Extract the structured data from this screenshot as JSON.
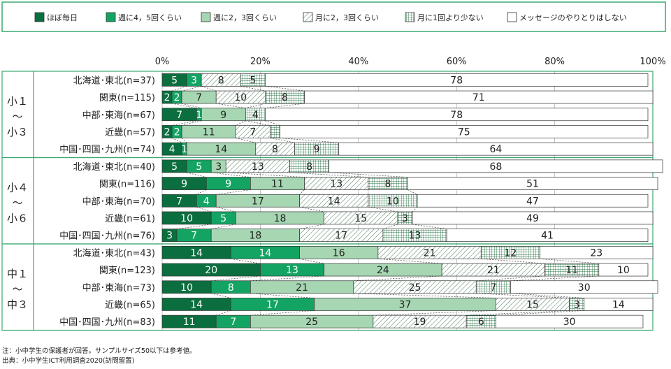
{
  "chart_data": {
    "type": "bar",
    "orientation": "horizontal",
    "stacked": true,
    "percent": true,
    "xlim": [
      0,
      100
    ],
    "x_ticks": [
      "0%",
      "20%",
      "40%",
      "60%",
      "80%",
      "100%"
    ],
    "legend": {
      "placement": "top",
      "items": [
        "ほぼ毎日",
        "週に4，5回くらい",
        "週に2，3回くらい",
        "月に2，3回くらい",
        "月に1回より少ない",
        "メッセージのやりとりはしない"
      ]
    },
    "groups": [
      {
        "label_lines": [
          "小１",
          "～",
          "小３"
        ],
        "rows": [
          {
            "label": "北海道･東北(n=37)",
            "values": [
              5,
              3,
              0,
              8,
              5,
              78
            ],
            "labels": [
              "5",
              "3",
              "",
              "8",
              "5",
              "78"
            ]
          },
          {
            "label": "関東(n=115)",
            "values": [
              2,
              2,
              7,
              10,
              8,
              71
            ],
            "labels": [
              "2",
              "2",
              "7",
              "10",
              "8",
              "71"
            ]
          },
          {
            "label": "中部･東海(n=67)",
            "values": [
              7,
              1,
              9,
              0,
              4,
              78
            ],
            "labels": [
              "7",
              "1",
              "9",
              "",
              "4",
              "78"
            ]
          },
          {
            "label": "近畿(n=57)",
            "values": [
              2,
              2,
              11,
              7,
              2,
              75
            ],
            "labels": [
              "2",
              "2",
              "11",
              "7",
              "",
              "75"
            ]
          },
          {
            "label": "中国･四国･九州(n=74)",
            "values": [
              4,
              1,
              14,
              8,
              9,
              64
            ],
            "labels": [
              "4",
              "1",
              "14",
              "8",
              "9",
              "64"
            ]
          }
        ]
      },
      {
        "label_lines": [
          "小４",
          "～",
          "小６"
        ],
        "rows": [
          {
            "label": "北海道･東北(n=40)",
            "values": [
              5,
              5,
              3,
              13,
              8,
              68
            ],
            "labels": [
              "5",
              "5",
              "3",
              "13",
              "8",
              "68"
            ]
          },
          {
            "label": "関東(n=116)",
            "values": [
              9,
              9,
              11,
              13,
              8,
              51
            ],
            "labels": [
              "9",
              "9",
              "11",
              "13",
              "8",
              "51"
            ]
          },
          {
            "label": "中部･東海(n=70)",
            "values": [
              7,
              4,
              17,
              14,
              10,
              47
            ],
            "labels": [
              "7",
              "4",
              "17",
              "14",
              "10",
              "47"
            ]
          },
          {
            "label": "近畿(n=61)",
            "values": [
              10,
              5,
              18,
              15,
              3,
              49
            ],
            "labels": [
              "10",
              "5",
              "18",
              "15",
              "3",
              "49"
            ]
          },
          {
            "label": "中国･四国･九州(n=76)",
            "values": [
              3,
              7,
              18,
              17,
              13,
              41
            ],
            "labels": [
              "3",
              "7",
              "18",
              "17",
              "13",
              "41"
            ]
          }
        ]
      },
      {
        "label_lines": [
          "中１",
          "～",
          "中３"
        ],
        "rows": [
          {
            "label": "北海道･東北(n=43)",
            "values": [
              14,
              14,
              16,
              21,
              12,
              23
            ],
            "labels": [
              "14",
              "14",
              "16",
              "21",
              "12",
              "23"
            ]
          },
          {
            "label": "関東(n=123)",
            "values": [
              20,
              13,
              24,
              21,
              11,
              10
            ],
            "labels": [
              "20",
              "13",
              "24",
              "21",
              "11",
              "10"
            ]
          },
          {
            "label": "中部･東海(n=73)",
            "values": [
              10,
              8,
              21,
              25,
              7,
              30
            ],
            "labels": [
              "10",
              "8",
              "21",
              "25",
              "7",
              "30"
            ]
          },
          {
            "label": "近畿(n=65)",
            "values": [
              14,
              17,
              37,
              15,
              3,
              14
            ],
            "labels": [
              "14",
              "17",
              "37",
              "15",
              "3",
              "14"
            ]
          },
          {
            "label": "中国･四国･九州(n=83)",
            "values": [
              11,
              7,
              25,
              19,
              6,
              30
            ],
            "labels": [
              "11",
              "7",
              "25",
              "19",
              "6",
              "30"
            ]
          }
        ]
      }
    ],
    "colors": {
      "c0": "#0b6e3f",
      "c1": "#13a463",
      "c2": "#a6d6b2",
      "frame": "#3aa870",
      "grid": "#999999",
      "text": "#222222"
    },
    "notes": [
      "注：小中学生の保護者が回答。サンプルサイズ50以下は参考値。",
      "出典：小中学生ICT利用調査2020(訪問留置)"
    ]
  }
}
